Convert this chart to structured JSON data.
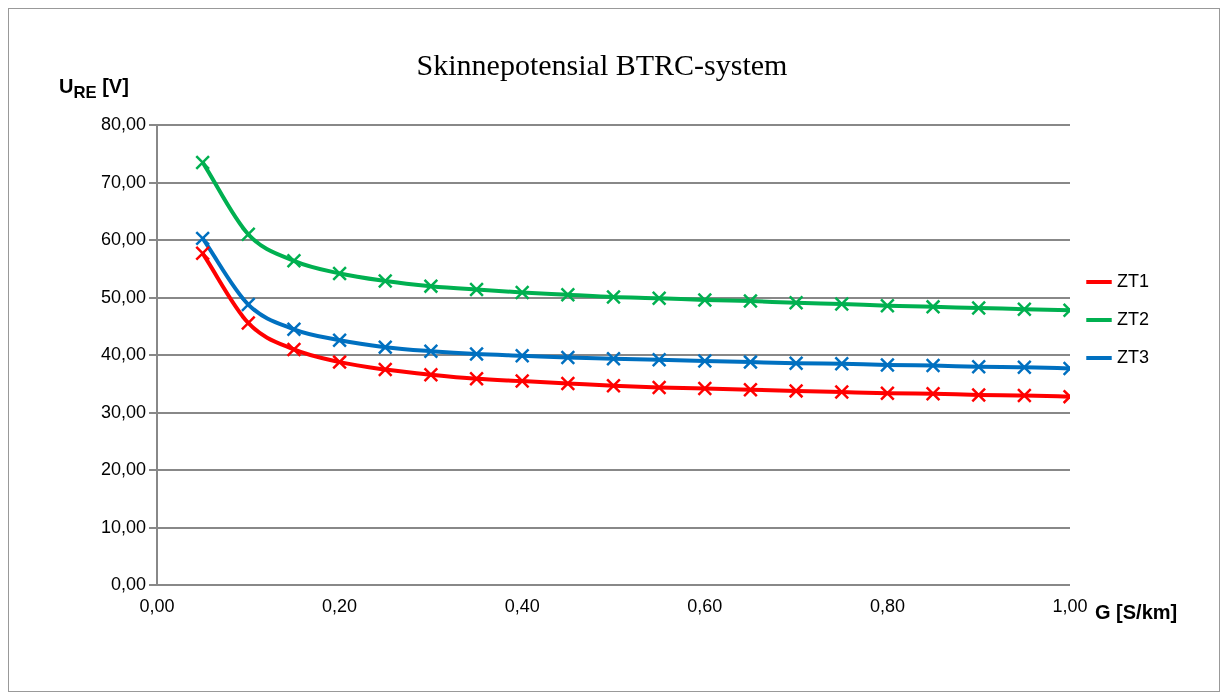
{
  "chart_data": {
    "type": "line",
    "title": "Skinnepotensial BTRC-system",
    "xlabel": "G [S/km]",
    "ylabel": "U$_{RE}$ [V]",
    "x": [
      0.05,
      0.1,
      0.15,
      0.2,
      0.25,
      0.3,
      0.35,
      0.4,
      0.45,
      0.5,
      0.55,
      0.6,
      0.65,
      0.7,
      0.75,
      0.8,
      0.85,
      0.9,
      0.95,
      1.0
    ],
    "series": [
      {
        "name": "ZT1",
        "color": "#ff0000",
        "values": [
          57.7,
          45.6,
          41.0,
          38.8,
          37.5,
          36.6,
          35.9,
          35.5,
          35.1,
          34.7,
          34.4,
          34.2,
          34.0,
          33.8,
          33.6,
          33.4,
          33.3,
          33.1,
          33.0,
          32.8
        ]
      },
      {
        "name": "ZT2",
        "color": "#00b050",
        "values": [
          73.5,
          61.0,
          56.4,
          54.2,
          52.9,
          52.0,
          51.4,
          50.9,
          50.5,
          50.1,
          49.9,
          49.6,
          49.4,
          49.1,
          48.9,
          48.6,
          48.4,
          48.2,
          48.0,
          47.8
        ]
      },
      {
        "name": "ZT3",
        "color": "#0070c0",
        "values": [
          60.3,
          48.8,
          44.5,
          42.6,
          41.4,
          40.7,
          40.2,
          39.9,
          39.6,
          39.4,
          39.2,
          39.0,
          38.8,
          38.6,
          38.5,
          38.3,
          38.2,
          38.0,
          37.9,
          37.7
        ]
      }
    ],
    "xlim": [
      0,
      1
    ],
    "ylim": [
      0,
      80
    ],
    "xticks": [
      {
        "value": 0,
        "label": "0,00"
      },
      {
        "value": 0.2,
        "label": "0,20"
      },
      {
        "value": 0.4,
        "label": "0,40"
      },
      {
        "value": 0.6,
        "label": "0,60"
      },
      {
        "value": 0.8,
        "label": "0,80"
      },
      {
        "value": 1,
        "label": "1,00"
      }
    ],
    "yticks": [
      {
        "value": 0,
        "label": "0,00"
      },
      {
        "value": 10,
        "label": "10,00"
      },
      {
        "value": 20,
        "label": "20,00"
      },
      {
        "value": 30,
        "label": "30,00"
      },
      {
        "value": 40,
        "label": "40,00"
      },
      {
        "value": 50,
        "label": "50,00"
      },
      {
        "value": 60,
        "label": "60,00"
      },
      {
        "value": 70,
        "label": "70,00"
      },
      {
        "value": 80,
        "label": "80,00"
      }
    ],
    "grid": "y",
    "legend": "right",
    "marker": "cross",
    "line_style": "solid"
  }
}
